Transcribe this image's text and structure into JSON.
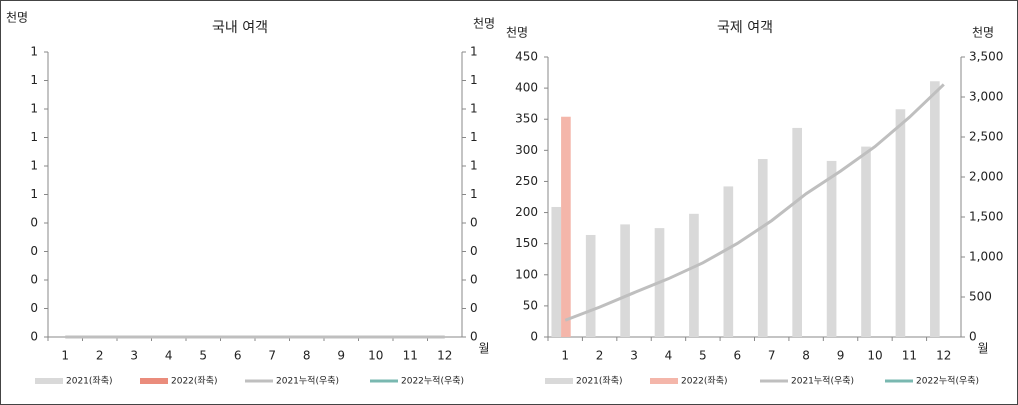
{
  "chart_data": [
    {
      "type": "combo",
      "title": "국내 여객",
      "y_label": "천명",
      "y2_label": "천명",
      "x_label": "월",
      "categories": [
        "1",
        "2",
        "3",
        "4",
        "5",
        "6",
        "7",
        "8",
        "9",
        "10",
        "11",
        "12"
      ],
      "ylim": [
        0,
        1
      ],
      "yticks": [
        {
          "value": 0,
          "label": "0"
        },
        {
          "value": 0.1,
          "label": "0"
        },
        {
          "value": 0.2,
          "label": "0"
        },
        {
          "value": 0.3,
          "label": "0"
        },
        {
          "value": 0.4,
          "label": "0"
        },
        {
          "value": 0.5,
          "label": "1"
        },
        {
          "value": 0.6,
          "label": "1"
        },
        {
          "value": 0.7,
          "label": "1"
        },
        {
          "value": 0.8,
          "label": "1"
        },
        {
          "value": 0.9,
          "label": "1"
        },
        {
          "value": 1,
          "label": "1"
        }
      ],
      "y2lim": [
        0,
        1
      ],
      "y2ticks": [
        {
          "value": 0,
          "label": "0"
        },
        {
          "value": 0.1,
          "label": "0"
        },
        {
          "value": 0.2,
          "label": "0"
        },
        {
          "value": 0.3,
          "label": "0"
        },
        {
          "value": 0.4,
          "label": "0"
        },
        {
          "value": 0.5,
          "label": "1"
        },
        {
          "value": 0.6,
          "label": "1"
        },
        {
          "value": 0.7,
          "label": "1"
        },
        {
          "value": 0.8,
          "label": "1"
        },
        {
          "value": 0.9,
          "label": "1"
        },
        {
          "value": 1,
          "label": "1"
        }
      ],
      "series": [
        {
          "name": "2021(좌축)",
          "type": "bar",
          "color": "#d9d9d9",
          "values": [
            0,
            0,
            0,
            0,
            0,
            0,
            0,
            0,
            0,
            0,
            0,
            0
          ]
        },
        {
          "name": "2022(좌축)",
          "type": "bar",
          "color": "#ea8c7c",
          "values": [
            0,
            null,
            null,
            null,
            null,
            null,
            null,
            null,
            null,
            null,
            null,
            null
          ]
        },
        {
          "name": "2021누적(우축)",
          "type": "line",
          "axis": "y2",
          "color": "#bfbfbf",
          "values": [
            0,
            0,
            0,
            0,
            0,
            0,
            0,
            0,
            0,
            0,
            0,
            0
          ]
        },
        {
          "name": "2022누적(우축)",
          "type": "line",
          "axis": "y2",
          "color": "#79b8b0",
          "values": [
            0,
            null,
            null,
            null,
            null,
            null,
            null,
            null,
            null,
            null,
            null,
            null
          ]
        }
      ]
    },
    {
      "type": "combo",
      "title": "국제 여객",
      "y_label": "천명",
      "y2_label": "천명",
      "x_label": "월",
      "categories": [
        "1",
        "2",
        "3",
        "4",
        "5",
        "6",
        "7",
        "8",
        "9",
        "10",
        "11",
        "12"
      ],
      "ylim": [
        0,
        450
      ],
      "yticks": [
        0,
        50,
        100,
        150,
        200,
        250,
        300,
        350,
        400,
        450
      ],
      "y2lim": [
        0,
        3500
      ],
      "y2ticks": [
        0,
        500,
        {
          "value": 1000,
          "label": "1,000"
        },
        {
          "value": 1500,
          "label": "1,500"
        },
        {
          "value": 2000,
          "label": "2,000"
        },
        {
          "value": 2500,
          "label": "2,500"
        },
        {
          "value": 3000,
          "label": "3,000"
        },
        {
          "value": 3500,
          "label": "3,500"
        }
      ],
      "series": [
        {
          "name": "2021(좌축)",
          "type": "bar",
          "color": "#d9d9d9",
          "values": [
            209,
            164,
            181,
            175,
            198,
            242,
            286,
            336,
            283,
            306,
            366,
            411
          ]
        },
        {
          "name": "2022(좌축)",
          "type": "bar",
          "color": "#f4b6aa",
          "values": [
            354,
            null,
            null,
            null,
            null,
            null,
            null,
            null,
            null,
            null,
            null,
            null
          ]
        },
        {
          "name": "2021누적(우축)",
          "type": "line",
          "axis": "y2",
          "color": "#bfbfbf",
          "values": [
            209,
            373,
            554,
            729,
            927,
            1169,
            1455,
            1791,
            2074,
            2380,
            2746,
            3157
          ]
        },
        {
          "name": "2022누적(우축)",
          "type": "line",
          "axis": "y2",
          "color": "#79b8b0",
          "values": [
            354,
            null,
            null,
            null,
            null,
            null,
            null,
            null,
            null,
            null,
            null,
            null
          ]
        }
      ]
    }
  ]
}
